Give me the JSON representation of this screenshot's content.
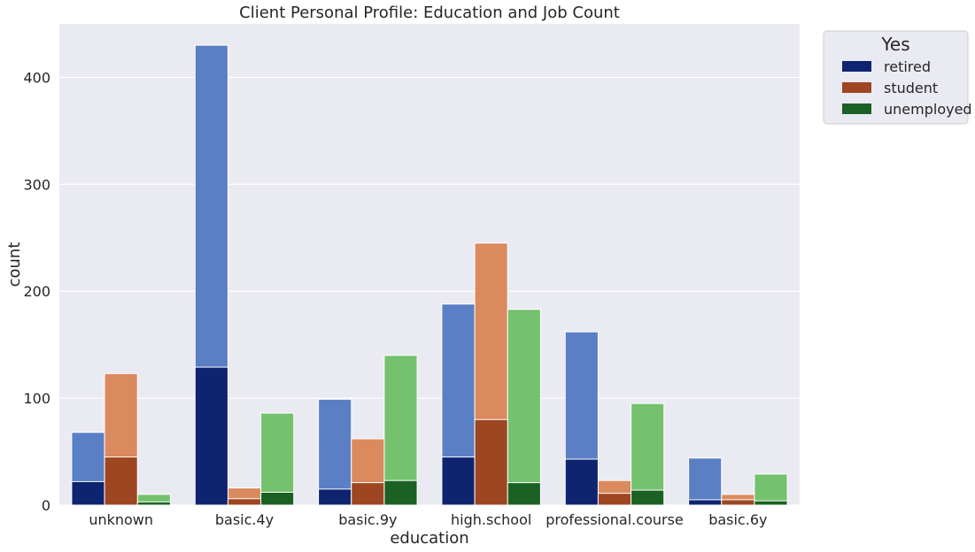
{
  "chart_data": {
    "type": "bar",
    "title": "Client Personal Profile: Education and Job Count",
    "xlabel": "education",
    "ylabel": "count",
    "ylim": [
      0,
      450
    ],
    "yticks": [
      0,
      100,
      200,
      300,
      400
    ],
    "categories": [
      "unknown",
      "basic.4y",
      "basic.9y",
      "high.school",
      "professional.course",
      "basic.6y"
    ],
    "layers": [
      {
        "name": "total",
        "series": [
          {
            "name": "retired",
            "color": "#5a7fc4",
            "values": [
              68,
              430,
              99,
              188,
              162,
              44
            ]
          },
          {
            "name": "student",
            "color": "#db8a5d",
            "values": [
              123,
              16,
              62,
              245,
              23,
              10
            ]
          },
          {
            "name": "unemployed",
            "color": "#74c16e",
            "values": [
              10,
              86,
              140,
              183,
              95,
              29
            ]
          }
        ]
      },
      {
        "name": "Yes",
        "series": [
          {
            "name": "retired",
            "color": "#0f2470",
            "values": [
              22,
              129,
              15,
              45,
              43,
              5
            ]
          },
          {
            "name": "student",
            "color": "#9e4522",
            "values": [
              45,
              6,
              21,
              80,
              11,
              5
            ]
          },
          {
            "name": "unemployed",
            "color": "#1b6124",
            "values": [
              3,
              12,
              23,
              21,
              14,
              4
            ]
          }
        ]
      }
    ],
    "legend": {
      "title": "Yes",
      "placement": "outside-top-right",
      "entries": [
        {
          "label": "retired",
          "color": "#0f2470"
        },
        {
          "label": "student",
          "color": "#9e4522"
        },
        {
          "label": "unemployed",
          "color": "#1b6124"
        }
      ]
    },
    "grid": true,
    "background": "#eaeaf2"
  }
}
